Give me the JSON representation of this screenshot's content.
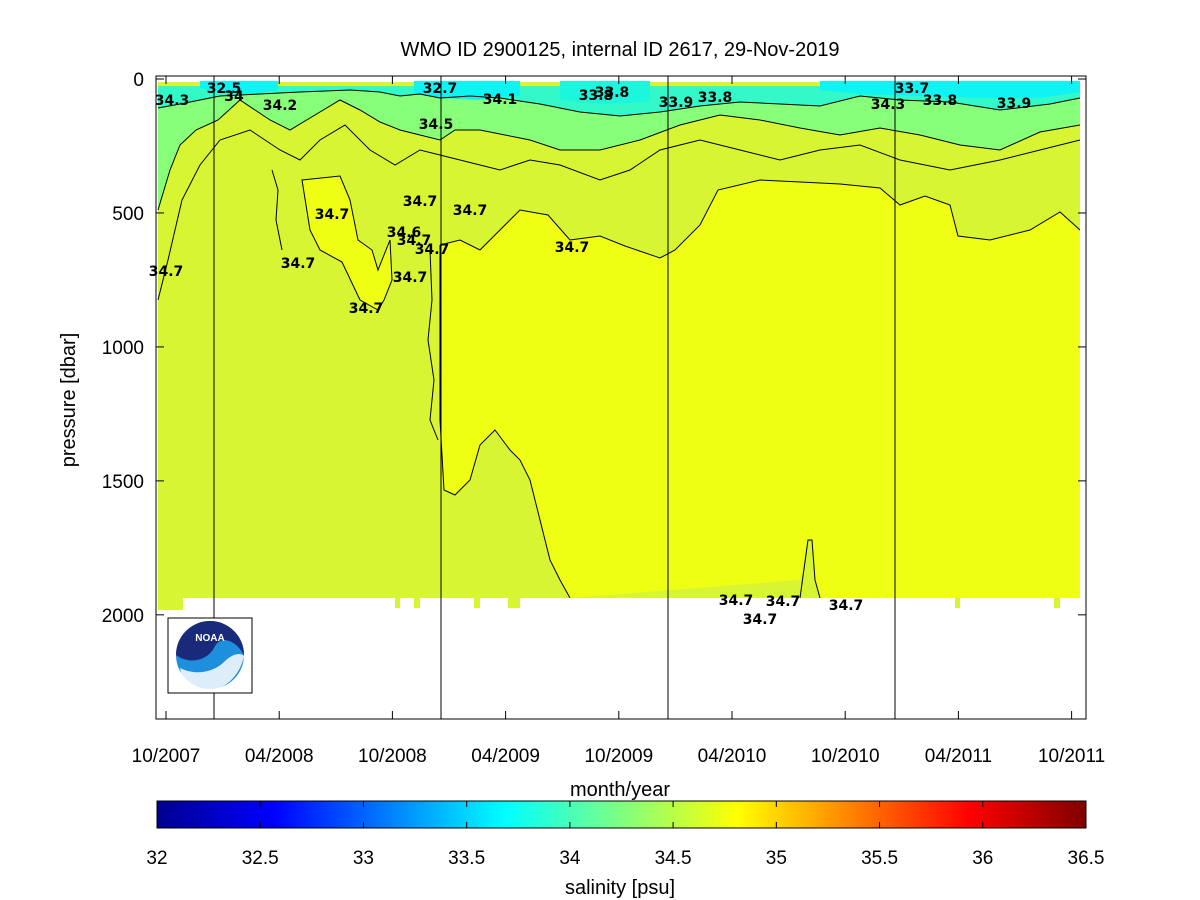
{
  "chart_data": {
    "type": "contour",
    "title": "WMO ID 2900125, internal ID 2617, 29-Nov-2019",
    "xlabel": "month/year",
    "ylabel": "pressure [dbar]",
    "x_ticks": [
      "10/2007",
      "04/2008",
      "10/2008",
      "04/2009",
      "10/2009",
      "04/2010",
      "10/2010",
      "04/2011",
      "10/2011"
    ],
    "y_ticks": [
      0,
      500,
      1000,
      1500,
      2000
    ],
    "y_range": [
      0,
      2400
    ],
    "y_reversed": true,
    "colorbar": {
      "label": "salinity [psu]",
      "min": 32,
      "max": 36.5,
      "ticks": [
        "32",
        "32.5",
        "33",
        "33.5",
        "34",
        "34.5",
        "35",
        "35.5",
        "36",
        "36.5"
      ]
    },
    "contour_labels": [
      "34.3",
      "32.5",
      "34",
      "34.2",
      "32.7",
      "34.1",
      "33.8",
      "33.8",
      "33.9",
      "33.8",
      "33.7",
      "34.3",
      "33.8",
      "33.9",
      "34.5",
      "34.7",
      "34.7",
      "34.7",
      "34.6",
      "34.7",
      "34.7",
      "34.7",
      "34.7",
      "34.7",
      "34.7",
      "34.7",
      "34.7",
      "34.7",
      "34.7",
      "34.7"
    ],
    "grid": false
  },
  "logo": {
    "text": "NOAA",
    "icon": "noaa-logo"
  }
}
